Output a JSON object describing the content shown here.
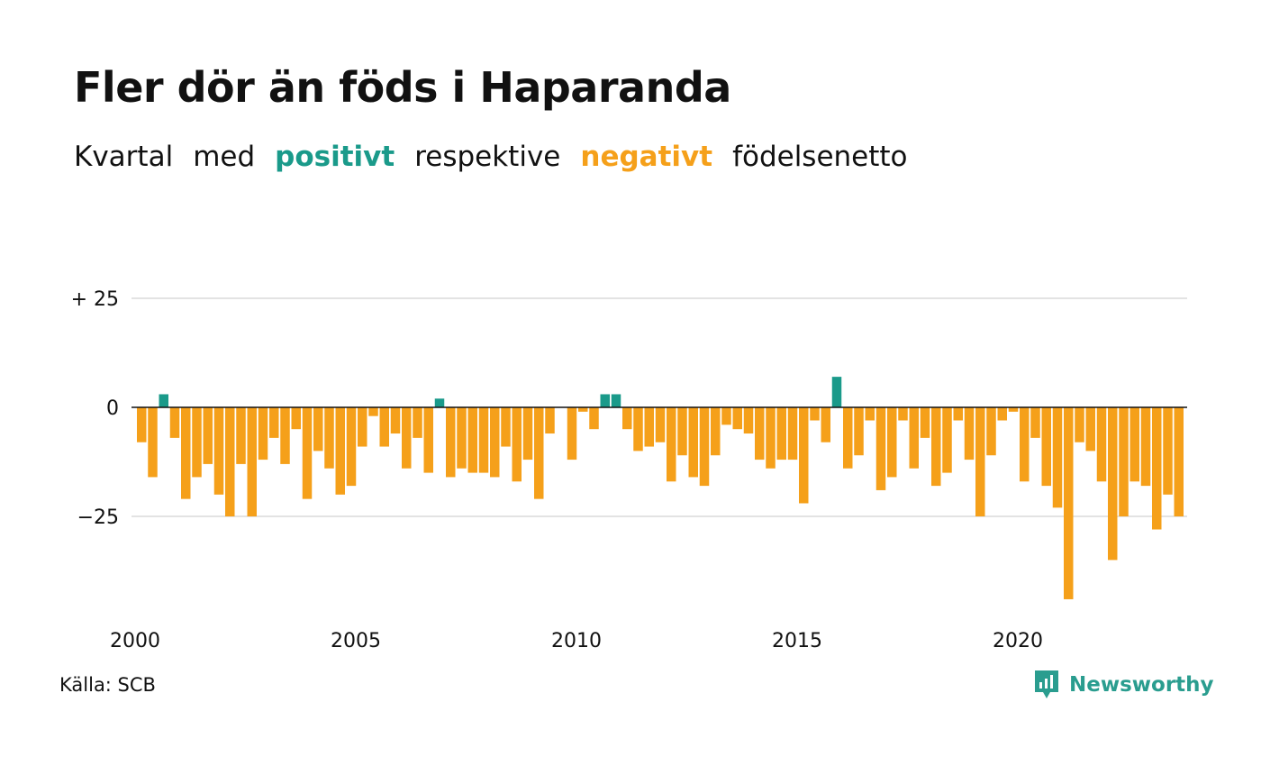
{
  "title": "Fler dör än föds i Haparanda",
  "subtitle": {
    "part1": "Kvartal",
    "part2": "med",
    "positive_word": "positivt",
    "part3": "respektive",
    "negative_word": "negativt",
    "part4": "födelsenetto"
  },
  "source": "Källa: SCB",
  "brand": "Newsworthy",
  "colors": {
    "positive": "#1a9a8a",
    "negative": "#f5a01a",
    "grid": "#e3e3e3",
    "zero_line": "#111111"
  },
  "chart_data": {
    "type": "bar",
    "x_start": "2000-Q1",
    "x_ticks": [
      "2000",
      "2005",
      "2010",
      "2015",
      "2020"
    ],
    "y_ticks": [
      {
        "value": 25,
        "label": "+ 25"
      },
      {
        "value": 0,
        "label": "0"
      },
      {
        "value": -25,
        "label": "−25"
      }
    ],
    "ylim": [
      -45,
      25
    ],
    "grid": true,
    "values": [
      -8,
      -16,
      3,
      -7,
      -21,
      -16,
      -13,
      -20,
      -25,
      -13,
      -25,
      -12,
      -7,
      -13,
      -5,
      -21,
      -10,
      -14,
      -20,
      -18,
      -9,
      -2,
      -9,
      -6,
      -14,
      -7,
      -15,
      2,
      -16,
      -14,
      -15,
      -15,
      -16,
      -9,
      -17,
      -12,
      -21,
      -6,
      0,
      -12,
      -1,
      -5,
      3,
      3,
      -5,
      -10,
      -9,
      -8,
      -17,
      -11,
      -16,
      -18,
      -11,
      -4,
      -5,
      -6,
      -12,
      -14,
      -12,
      -12,
      -22,
      -3,
      -8,
      7,
      -14,
      -11,
      -3,
      -19,
      -16,
      -3,
      -14,
      -7,
      -18,
      -15,
      -3,
      -12,
      -25,
      -11,
      -3,
      -1,
      -17,
      -7,
      -18,
      -23,
      -44,
      -8,
      -10,
      -17,
      -35,
      -25,
      -17,
      -18,
      -28,
      -20,
      -25
    ]
  }
}
